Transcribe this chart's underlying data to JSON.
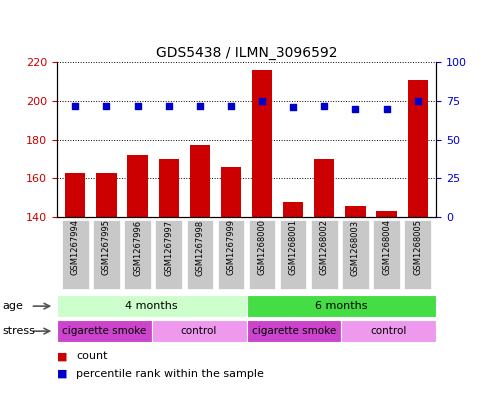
{
  "title": "GDS5438 / ILMN_3096592",
  "samples": [
    "GSM1267994",
    "GSM1267995",
    "GSM1267996",
    "GSM1267997",
    "GSM1267998",
    "GSM1267999",
    "GSM1268000",
    "GSM1268001",
    "GSM1268002",
    "GSM1268003",
    "GSM1268004",
    "GSM1268005"
  ],
  "counts": [
    163,
    163,
    172,
    170,
    177,
    166,
    216,
    148,
    170,
    146,
    143,
    211
  ],
  "percentiles": [
    72,
    72,
    72,
    72,
    72,
    72,
    75,
    71,
    72,
    70,
    70,
    75
  ],
  "ymin": 140,
  "ymax": 220,
  "yticks": [
    140,
    160,
    180,
    200,
    220
  ],
  "yright_ticks": [
    0,
    25,
    50,
    75,
    100
  ],
  "bar_color": "#cc0000",
  "dot_color": "#0000cc",
  "age_groups": [
    {
      "label": "4 months",
      "start": 0,
      "end": 5,
      "color": "#ccffcc"
    },
    {
      "label": "6 months",
      "start": 6,
      "end": 11,
      "color": "#44dd44"
    }
  ],
  "stress_groups": [
    {
      "label": "cigarette smoke",
      "start": 0,
      "end": 2,
      "color": "#cc44cc"
    },
    {
      "label": "control",
      "start": 3,
      "end": 5,
      "color": "#ee99ee"
    },
    {
      "label": "cigarette smoke",
      "start": 6,
      "end": 8,
      "color": "#cc44cc"
    },
    {
      "label": "control",
      "start": 9,
      "end": 11,
      "color": "#ee99ee"
    }
  ],
  "tick_label_color": "#cc0000",
  "right_tick_color": "#0000cc",
  "legend_count_color": "#cc0000",
  "legend_pct_color": "#0000cc",
  "xtick_bg_color": "#c8c8c8"
}
